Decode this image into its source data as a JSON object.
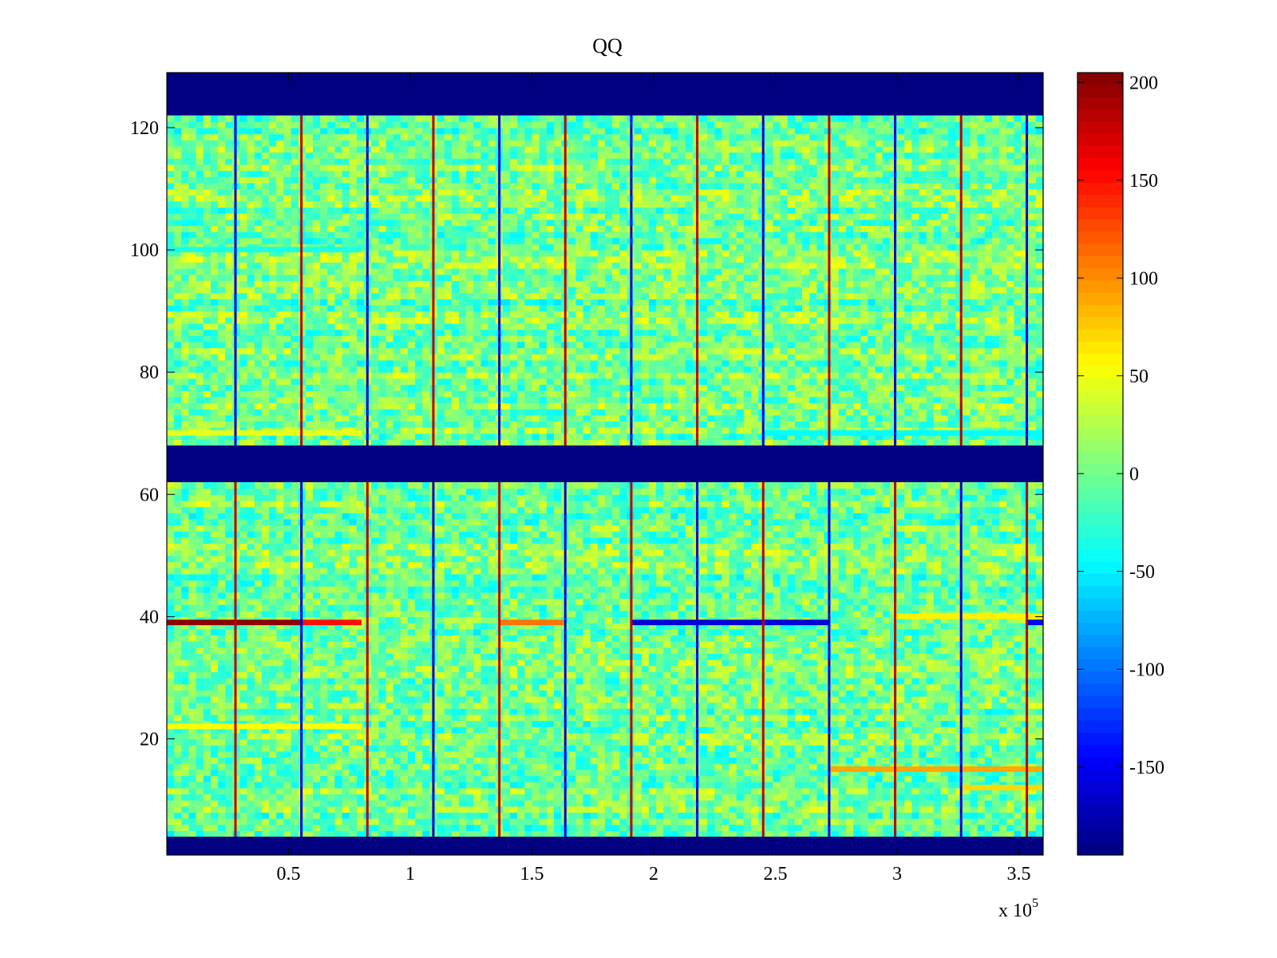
{
  "chart_data": {
    "type": "heatmap",
    "title": "QQ",
    "xlabel": "",
    "ylabel": "",
    "x_exponent_label": {
      "base": "x 10",
      "exponent": "5"
    },
    "xlim": [
      0,
      3.6
    ],
    "ylim": [
      1,
      129
    ],
    "x_ticks": [
      0.5,
      1,
      1.5,
      2,
      2.5,
      3,
      3.5
    ],
    "x_tick_labels": [
      "0.5",
      "1",
      "1.5",
      "2",
      "2.5",
      "3",
      "3.5"
    ],
    "y_ticks": [
      20,
      40,
      60,
      80,
      100,
      120
    ],
    "y_tick_labels": [
      "20",
      "40",
      "60",
      "80",
      "100",
      "120"
    ],
    "colorbar": {
      "colormap": "jet",
      "clim": [
        -195,
        205
      ],
      "ticks": [
        -150,
        -100,
        -50,
        0,
        50,
        100,
        150,
        200
      ],
      "tick_labels": [
        "-150",
        "-100",
        "-50",
        "0",
        "50",
        "100",
        "150",
        "200"
      ]
    },
    "background_noise_range": [
      -40,
      40
    ],
    "blank_row_bands": [
      {
        "y_from": 1,
        "y_to": 4,
        "value": -195
      },
      {
        "y_from": 62,
        "y_to": 68,
        "value": -195
      },
      {
        "y_from": 122,
        "y_to": 129,
        "value": -195
      }
    ],
    "vertical_boundaries_x": [
      0.282,
      0.553,
      0.824,
      1.095,
      1.366,
      1.637,
      1.908,
      2.179,
      2.45,
      2.721,
      2.992,
      3.263,
      3.533
    ],
    "row_features": [
      {
        "row": 39,
        "x_from": 0,
        "x_to": 0.56,
        "value": 200
      },
      {
        "row": 39,
        "x_from": 0.56,
        "x_to": 0.8,
        "value": 150
      },
      {
        "row": 39,
        "x_from": 1.37,
        "x_to": 1.63,
        "value": 110
      },
      {
        "row": 39,
        "x_from": 1.91,
        "x_to": 2.72,
        "value": -160
      },
      {
        "row": 39,
        "x_from": 3.53,
        "x_to": 3.6,
        "value": -150
      },
      {
        "row": 40,
        "x_from": 2.99,
        "x_to": 3.6,
        "value": 60
      },
      {
        "row": 22,
        "x_from": 0,
        "x_to": 0.8,
        "value": 55
      },
      {
        "row": 15,
        "x_from": 2.72,
        "x_to": 3.6,
        "value": 90
      },
      {
        "row": 12,
        "x_from": 3.26,
        "x_to": 3.6,
        "value": 70
      },
      {
        "row": 70,
        "x_from": 0,
        "x_to": 0.8,
        "value": 45
      },
      {
        "row": 70,
        "x_from": 2.45,
        "x_to": 3.6,
        "value": -45
      },
      {
        "row": 100,
        "x_from": 0,
        "x_to": 0.8,
        "value": -35
      }
    ]
  }
}
